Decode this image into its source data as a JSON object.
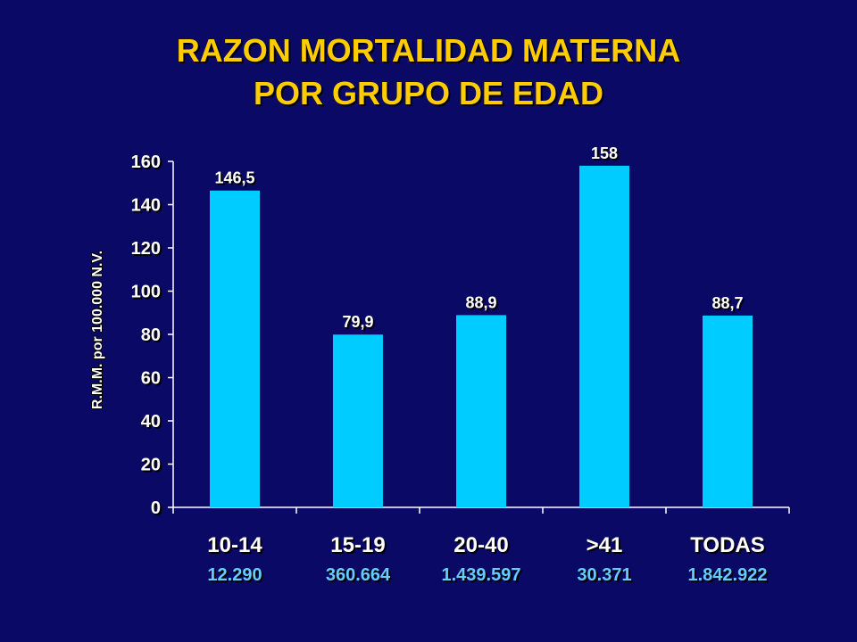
{
  "title": {
    "line1": "RAZON MORTALIDAD MATERNA",
    "line2": "POR GRUPO DE EDAD"
  },
  "colors": {
    "background": "#0a0a66",
    "title": "#ffcc00",
    "bar": "#00ccff",
    "text": "#ffffff",
    "sublabel": "#66ccff"
  },
  "chart_data": {
    "type": "bar",
    "categories": [
      "10-14",
      "15-19",
      "20-40",
      ">41",
      "TODAS"
    ],
    "category_sublabels": [
      "12.290",
      "360.664",
      "1.439.597",
      "30.371",
      "1.842.922"
    ],
    "values": [
      146.5,
      79.9,
      88.9,
      158,
      88.7
    ],
    "value_labels": [
      "146,5",
      "79,9",
      "88,9",
      "158",
      "88,7"
    ],
    "ylabel": "R.M.M. por 100.000 N.V.",
    "xlabel": "",
    "ylim": [
      0,
      160
    ],
    "yticks": [
      0,
      20,
      40,
      60,
      80,
      100,
      120,
      140,
      160
    ],
    "grid": false,
    "legend": "none"
  }
}
